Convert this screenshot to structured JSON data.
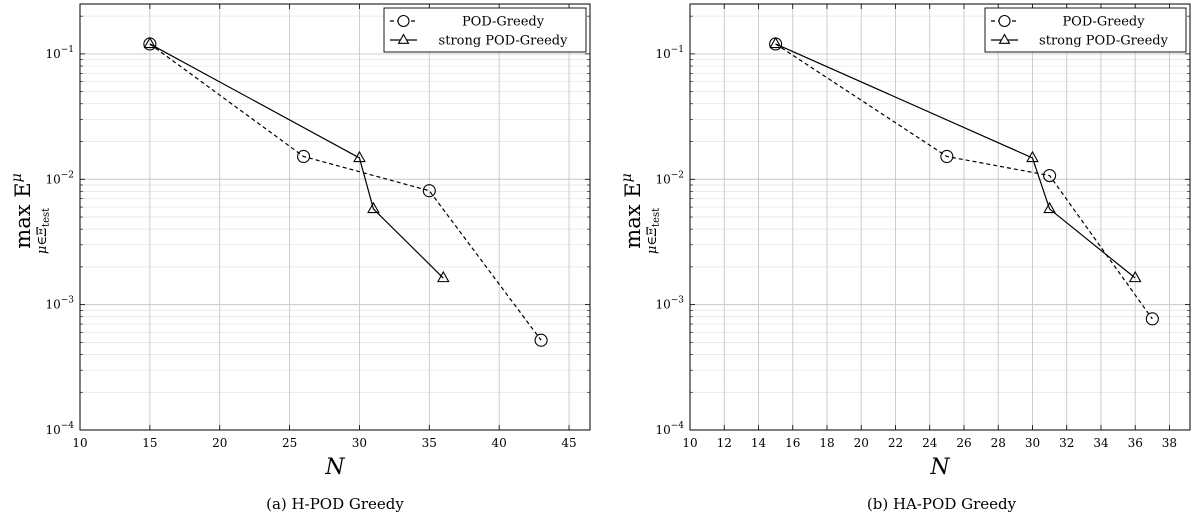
{
  "chart_data": [
    {
      "type": "line",
      "caption": "(a) H-POD Greedy",
      "xlabel": "N",
      "ylabel": {
        "main": "max E",
        "superscript": "μ",
        "subscript": "μ∈Ξ",
        "subscript_tail": "test"
      },
      "xlim": [
        10,
        46.5
      ],
      "ylim": [
        0.0001,
        0.25
      ],
      "yscale": "log",
      "grid": true,
      "legend_position": "top-right",
      "x_ticks": [
        10,
        15,
        20,
        25,
        30,
        35,
        40,
        45
      ],
      "y_ticks": [
        {
          "value": 0.1,
          "base": "10",
          "exp": "−1"
        },
        {
          "value": 0.01,
          "base": "10",
          "exp": "−2"
        },
        {
          "value": 0.001,
          "base": "10",
          "exp": "−3"
        },
        {
          "value": 0.0001,
          "base": "10",
          "exp": "−4"
        }
      ],
      "series": [
        {
          "name": "POD-Greedy",
          "marker": "circle",
          "line": "dashed",
          "x": [
            15,
            26,
            35,
            43
          ],
          "y": [
            0.12,
            0.0152,
            0.0081,
            0.00052
          ]
        },
        {
          "name": "strong POD-Greedy",
          "marker": "triangle",
          "line": "solid",
          "x": [
            15,
            30,
            31,
            36
          ],
          "y": [
            0.12,
            0.0148,
            0.0058,
            0.00163
          ]
        }
      ]
    },
    {
      "type": "line",
      "caption": "(b) HA-POD Greedy",
      "xlabel": "N",
      "ylabel": {
        "main": "max E",
        "superscript": "μ",
        "subscript": "μ∈Ξ",
        "subscript_tail": "test"
      },
      "xlim": [
        10,
        39.2
      ],
      "ylim": [
        0.0001,
        0.25
      ],
      "yscale": "log",
      "grid": true,
      "legend_position": "top-right",
      "x_ticks": [
        10,
        12,
        14,
        16,
        18,
        20,
        22,
        24,
        26,
        28,
        30,
        32,
        34,
        36,
        38
      ],
      "y_ticks": [
        {
          "value": 0.1,
          "base": "10",
          "exp": "−1"
        },
        {
          "value": 0.01,
          "base": "10",
          "exp": "−2"
        },
        {
          "value": 0.001,
          "base": "10",
          "exp": "−3"
        },
        {
          "value": 0.0001,
          "base": "10",
          "exp": "−4"
        }
      ],
      "series": [
        {
          "name": "POD-Greedy",
          "marker": "circle",
          "line": "dashed",
          "x": [
            15,
            25,
            31,
            37
          ],
          "y": [
            0.12,
            0.0152,
            0.0107,
            0.00077
          ]
        },
        {
          "name": "strong POD-Greedy",
          "marker": "triangle",
          "line": "solid",
          "x": [
            15,
            30,
            31,
            36
          ],
          "y": [
            0.12,
            0.0148,
            0.0058,
            0.00163
          ]
        }
      ]
    }
  ]
}
